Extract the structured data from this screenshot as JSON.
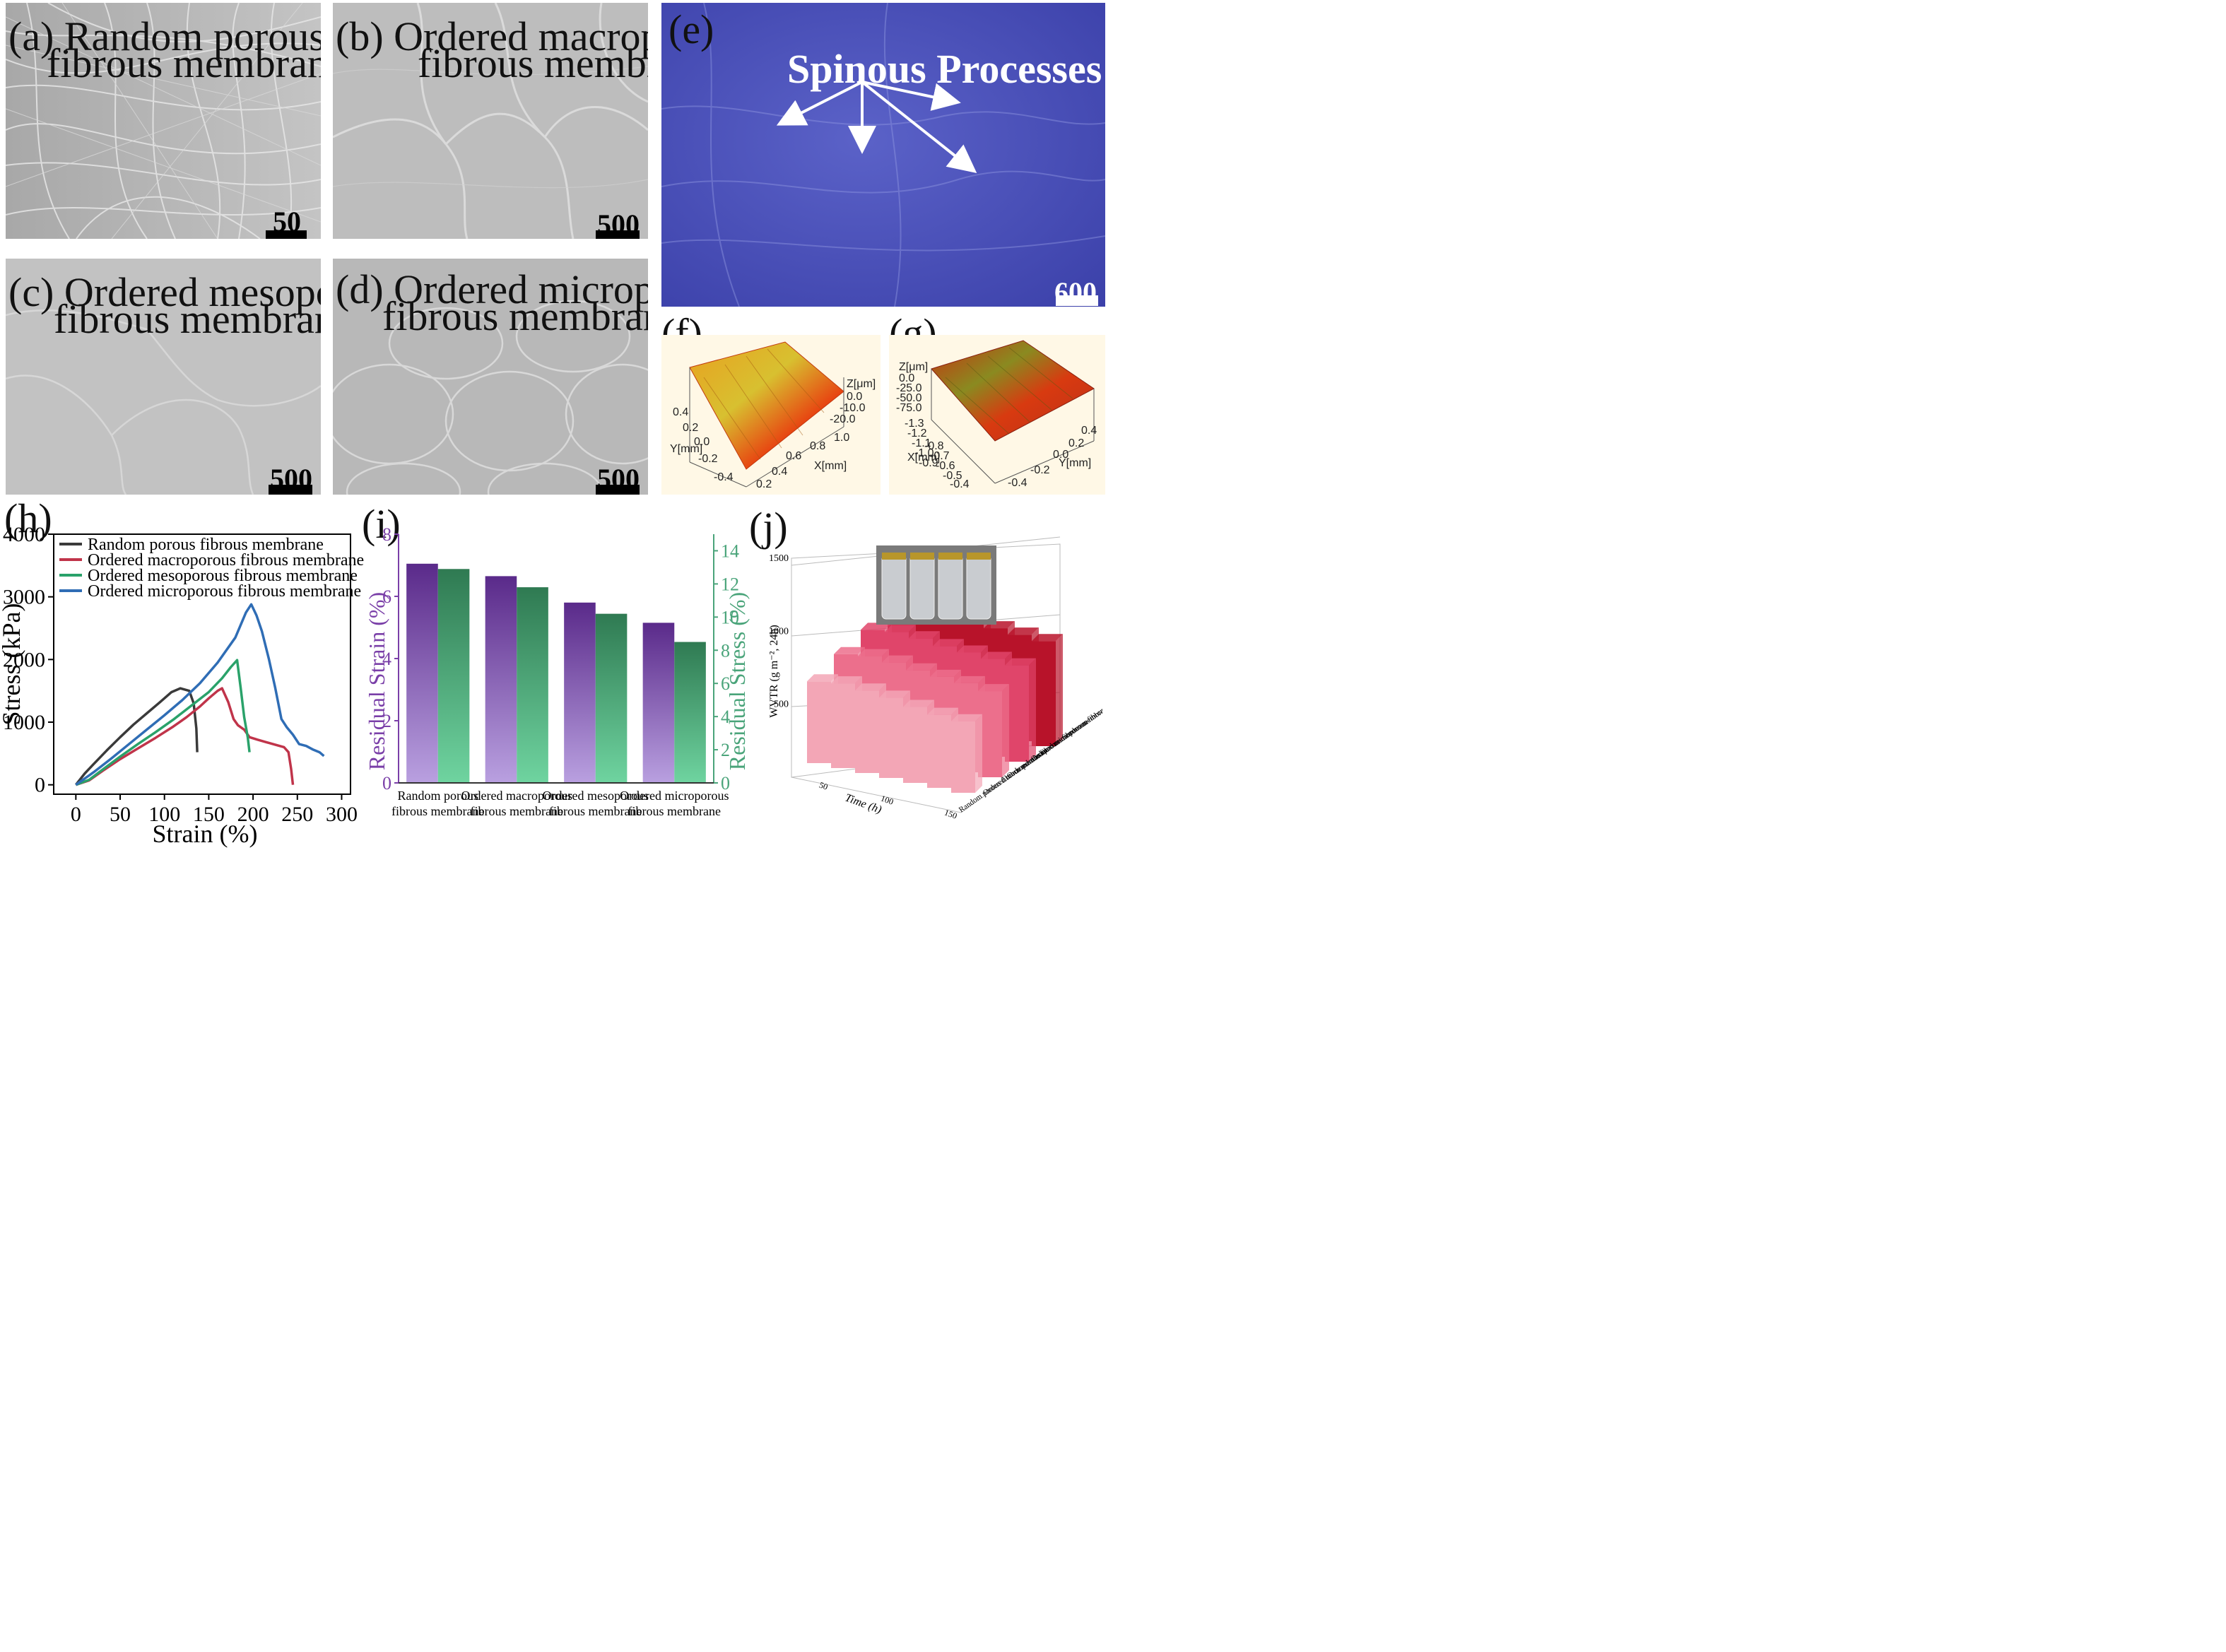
{
  "panels": {
    "a": {
      "label_line1": "(a) Random porous",
      "label_line2": "fibrous membrane",
      "scale": "50 μm"
    },
    "b": {
      "label_line1": "(b) Ordered macroporous",
      "label_line2": "fibrous membrane",
      "scale": "500 μm"
    },
    "c": {
      "label_line1": "(c) Ordered mesoporous",
      "label_line2": "fibrous membrane",
      "scale": "500 μm"
    },
    "d": {
      "label_line1": "(d) Ordered microporous",
      "label_line2": "fibrous membrane",
      "scale": "500 μm"
    },
    "e": {
      "label": "(e)",
      "annotation": "Spinous Processes",
      "scale": "600 μm"
    },
    "f": {
      "label": "(f)",
      "z_axis": "Z[μm]",
      "z_ticks": [
        "0.0",
        "-10.0",
        "-20.0"
      ],
      "y_axis": "Y[mm]",
      "y_ticks": [
        "0.4",
        "0.2",
        "0.0",
        "-0.2",
        "-0.4"
      ],
      "x_axis": "X[mm]",
      "x_ticks": [
        "1.0",
        "0.8",
        "0.6",
        "0.4",
        "0.2"
      ]
    },
    "g": {
      "label": "(g)",
      "z_axis": "Z[μm]",
      "z_ticks": [
        "0.0",
        "-25.0",
        "-50.0",
        "-75.0"
      ],
      "x_axis": "X[mm]",
      "x_ticks": [
        "-1.3",
        "-1.2",
        "-1.1",
        "-1.0",
        "-0.9",
        "-0.8",
        "-0.7",
        "-0.6",
        "-0.5",
        "-0.4"
      ],
      "y_axis": "Y[mm]",
      "y_ticks": [
        "0.4",
        "0.2",
        "0.0",
        "-0.2",
        "-0.4"
      ]
    },
    "h": {
      "label": "(h)"
    },
    "i": {
      "label": "(i)"
    },
    "j": {
      "label": "(j)"
    }
  },
  "chart_data": [
    {
      "id": "h",
      "type": "line",
      "xlabel": "Strain (%)",
      "ylabel": "Stress (kPa)",
      "xlim": [
        -25,
        310
      ],
      "ylim": [
        -150,
        4000
      ],
      "xticks": [
        0,
        50,
        100,
        150,
        200,
        250,
        300
      ],
      "yticks": [
        0,
        1000,
        2000,
        3000,
        4000
      ],
      "legend_position": "top-left",
      "series": [
        {
          "name": "Random porous fibrous membrane",
          "color": "#3a3a3a",
          "x": [
            0,
            10,
            20,
            35,
            50,
            65,
            80,
            95,
            108,
            118,
            128,
            133,
            136,
            137
          ],
          "y": [
            0,
            180,
            330,
            550,
            760,
            960,
            1140,
            1320,
            1480,
            1540,
            1500,
            1300,
            900,
            520
          ]
        },
        {
          "name": "Ordered macroporous fibrous membrane",
          "color": "#c0344a",
          "x": [
            0,
            15,
            30,
            50,
            70,
            90,
            110,
            125,
            140,
            150,
            160,
            165,
            172,
            178,
            183,
            190,
            196,
            205,
            215,
            225,
            235,
            240,
            243,
            245
          ],
          "y": [
            0,
            70,
            220,
            410,
            580,
            750,
            930,
            1080,
            1250,
            1380,
            1500,
            1540,
            1320,
            1050,
            950,
            880,
            760,
            720,
            680,
            640,
            600,
            520,
            250,
            0
          ]
        },
        {
          "name": "Ordered mesoporous fibrous membrane",
          "color": "#2aa26a",
          "x": [
            0,
            15,
            30,
            50,
            70,
            90,
            110,
            130,
            150,
            165,
            175,
            182,
            186,
            190,
            194,
            196
          ],
          "y": [
            0,
            80,
            240,
            450,
            650,
            840,
            1040,
            1260,
            1480,
            1700,
            1880,
            1990,
            1550,
            1080,
            760,
            520
          ]
        },
        {
          "name": "Ordered microporous fibrous membrane",
          "color": "#2f6db5",
          "x": [
            0,
            20,
            40,
            60,
            80,
            100,
            120,
            140,
            160,
            180,
            192,
            198,
            204,
            210,
            218,
            225,
            232,
            238,
            245,
            252,
            260,
            268,
            275,
            280
          ],
          "y": [
            0,
            200,
            420,
            650,
            880,
            1110,
            1350,
            1620,
            1950,
            2350,
            2750,
            2880,
            2700,
            2450,
            2000,
            1550,
            1050,
            920,
            800,
            650,
            620,
            560,
            520,
            460
          ]
        }
      ]
    },
    {
      "id": "i",
      "type": "bar",
      "categories": [
        "Random porous fibrous membrane",
        "Ordered macroporous fibrous membrane",
        "Ordered mesoporous fibrous membrane",
        "Ordered microporous fibrous membrane"
      ],
      "ylabel_left": "Residual Strain (%)",
      "ylabel_right": "Residual Stress (%)",
      "ylim_left": [
        0,
        8
      ],
      "ylim_right": [
        0,
        15
      ],
      "yticks_left": [
        0,
        2,
        4,
        6,
        8
      ],
      "yticks_right": [
        0,
        2,
        4,
        6,
        8,
        10,
        12,
        14
      ],
      "series": [
        {
          "axis": "left",
          "values": [
            7.05,
            6.65,
            5.8,
            5.15
          ],
          "color_top": "#5a2a8a",
          "color_bottom": "#b9a0e0"
        },
        {
          "axis": "right",
          "values": [
            12.9,
            11.8,
            10.2,
            8.5
          ],
          "color_top": "#2f7a52",
          "color_bottom": "#6fd4a0"
        }
      ],
      "right_axis_color": "#4aa47a",
      "left_axis_color": "#7a3fa8"
    },
    {
      "id": "j",
      "type": "bar3d",
      "zlabel": "WVTR (g m⁻², 24h)",
      "xlabel": "Time (h)",
      "zticks": [
        500,
        1000,
        1500
      ],
      "zlim": [
        0,
        1500
      ],
      "time_ticks": [
        "50",
        "100",
        "150"
      ],
      "membranes": [
        "Random porous fibrous membrane",
        "Ordered macroporous fibrous membrane",
        "Ordered mesoporous fibrous membrane",
        "Ordered microporous fibrous membrane"
      ],
      "values": [
        [
          560,
          580,
          565,
          550,
          520,
          500,
          490
        ],
        [
          640,
          660,
          650,
          630,
          620,
          610,
          590
        ],
        [
          700,
          720,
          710,
          690,
          680,
          670,
          660
        ],
        [
          760,
          780,
          770,
          750,
          740,
          730,
          720
        ]
      ],
      "colors": [
        "#f3a6b6",
        "#ec6f8c",
        "#e0456a",
        "#b8132a"
      ]
    }
  ]
}
